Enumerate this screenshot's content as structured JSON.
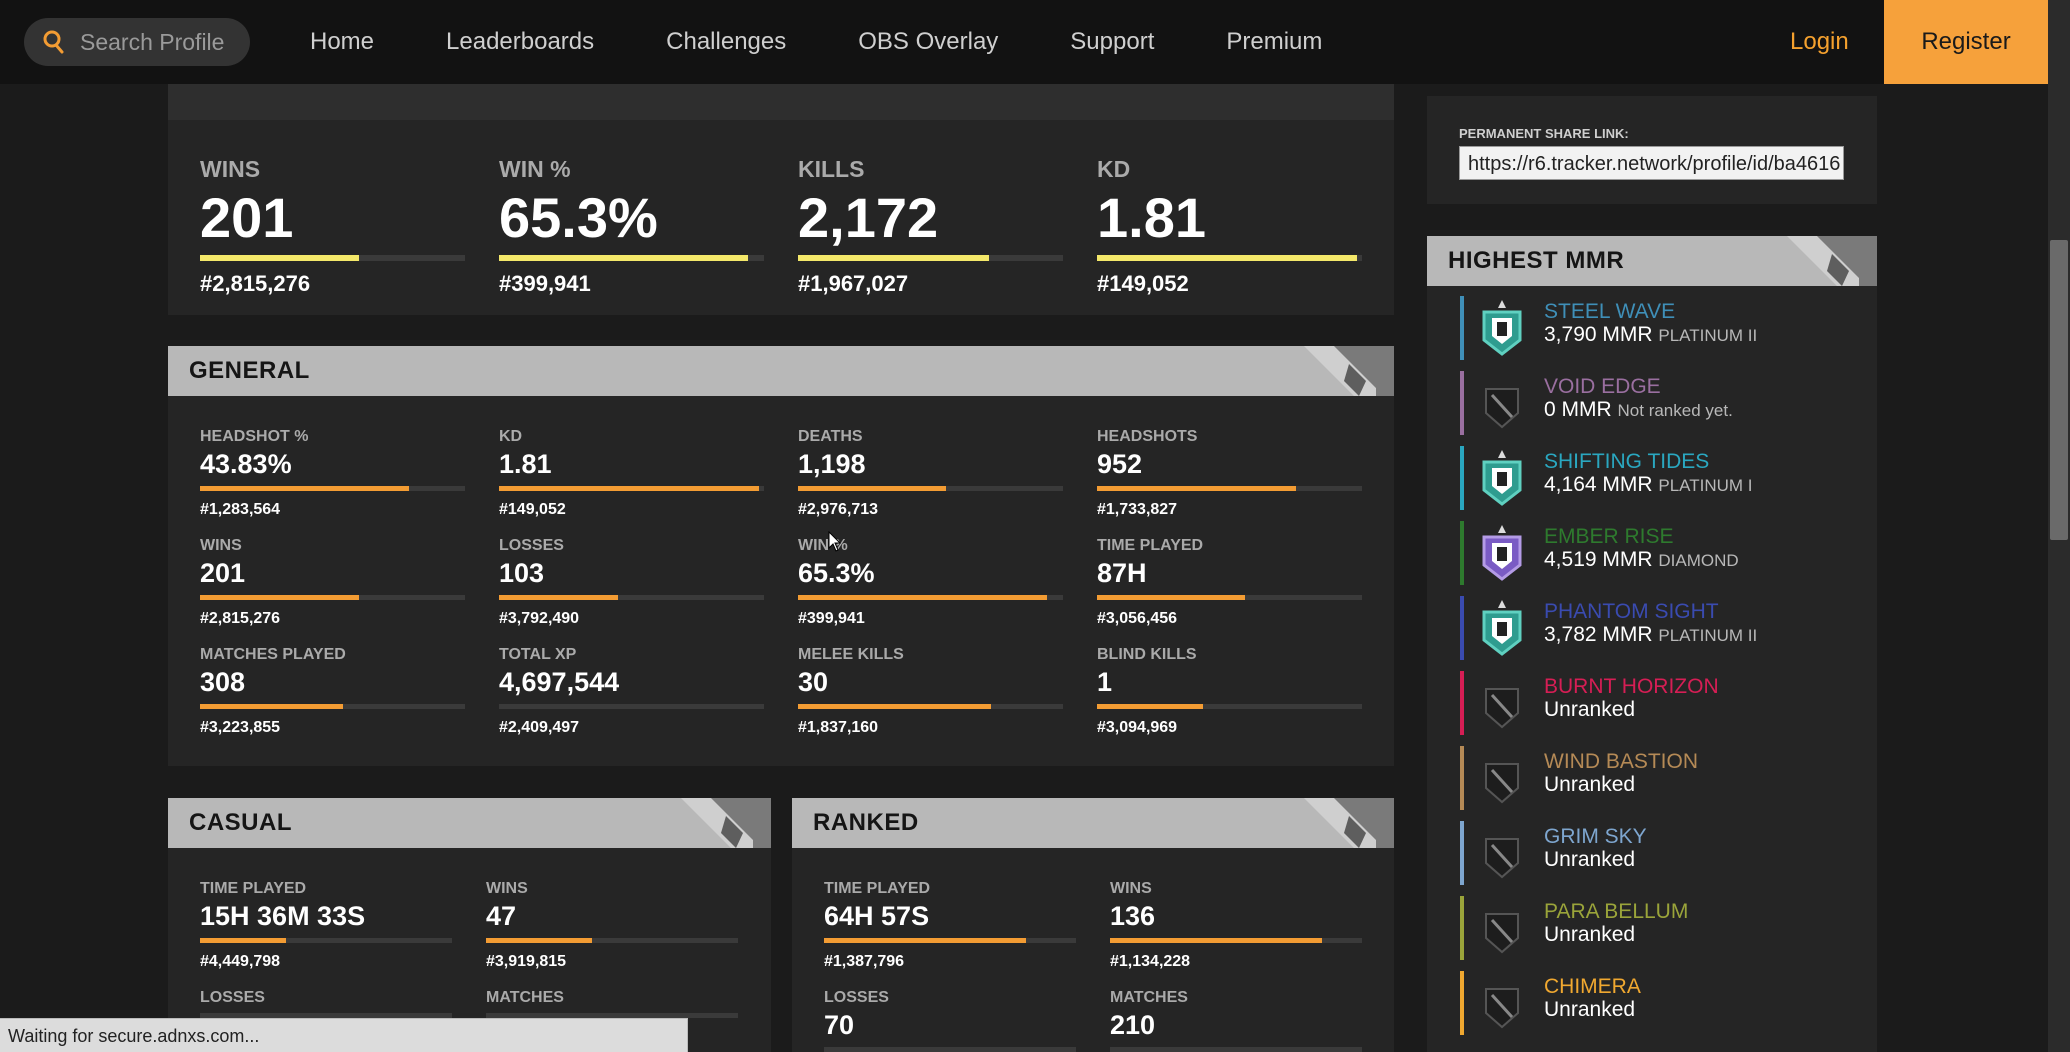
{
  "nav": {
    "search_placeholder": "Search Profile",
    "links": [
      "Home",
      "Leaderboards",
      "Challenges",
      "OBS Overlay",
      "Support",
      "Premium"
    ],
    "login": "Login",
    "register": "Register"
  },
  "overview": [
    {
      "label": "WINS",
      "value": "201",
      "rank": "#2,815,276",
      "progress": 0.6
    },
    {
      "label": "WIN %",
      "value": "65.3%",
      "rank": "#399,941",
      "progress": 0.94
    },
    {
      "label": "KILLS",
      "value": "2,172",
      "rank": "#1,967,027",
      "progress": 0.72
    },
    {
      "label": "KD",
      "value": "1.81",
      "rank": "#149,052",
      "progress": 0.98
    }
  ],
  "general": {
    "title": "GENERAL",
    "stats": [
      {
        "label": "HEADSHOT %",
        "value": "43.83%",
        "rank": "#1,283,564",
        "progress": 0.79
      },
      {
        "label": "KD",
        "value": "1.81",
        "rank": "#149,052",
        "progress": 0.98
      },
      {
        "label": "DEATHS",
        "value": "1,198",
        "rank": "#2,976,713",
        "progress": 0.56
      },
      {
        "label": "HEADSHOTS",
        "value": "952",
        "rank": "#1,733,827",
        "progress": 0.75
      },
      {
        "label": "WINS",
        "value": "201",
        "rank": "#2,815,276",
        "progress": 0.6
      },
      {
        "label": "LOSSES",
        "value": "103",
        "rank": "#3,792,490",
        "progress": 0.45
      },
      {
        "label": "WIN %",
        "value": "65.3%",
        "rank": "#399,941",
        "progress": 0.94
      },
      {
        "label": "TIME PLAYED",
        "value": "87H",
        "rank": "#3,056,456",
        "progress": 0.56
      },
      {
        "label": "MATCHES PLAYED",
        "value": "308",
        "rank": "#3,223,855",
        "progress": 0.54
      },
      {
        "label": "TOTAL XP",
        "value": "4,697,544",
        "rank": "#2,409,497",
        "progress": 0.0
      },
      {
        "label": "MELEE KILLS",
        "value": "30",
        "rank": "#1,837,160",
        "progress": 0.73
      },
      {
        "label": "BLIND KILLS",
        "value": "1",
        "rank": "#3,094,969",
        "progress": 0.4
      }
    ]
  },
  "casual": {
    "title": "CASUAL",
    "stats": [
      {
        "label": "TIME PLAYED",
        "value": "15H 36M 33S",
        "rank": "#4,449,798",
        "progress": 0.34
      },
      {
        "label": "WINS",
        "value": "47",
        "rank": "#3,919,815",
        "progress": 0.42
      },
      {
        "label": "LOSSES",
        "value": "",
        "rank": "",
        "progress": 0.0
      },
      {
        "label": "MATCHES",
        "value": "",
        "rank": "",
        "progress": 0.0
      }
    ]
  },
  "ranked": {
    "title": "RANKED",
    "stats": [
      {
        "label": "TIME PLAYED",
        "value": "64H 57S",
        "rank": "#1,387,796",
        "progress": 0.8
      },
      {
        "label": "WINS",
        "value": "136",
        "rank": "#1,134,228",
        "progress": 0.84
      },
      {
        "label": "LOSSES",
        "value": "70",
        "rank": "",
        "progress": 0.0
      },
      {
        "label": "MATCHES",
        "value": "210",
        "rank": "",
        "progress": 0.0
      }
    ]
  },
  "share": {
    "label": "PERMANENT SHARE LINK:",
    "url": "https://r6.tracker.network/profile/id/ba4616"
  },
  "highest_mmr": {
    "title": "HIGHEST MMR",
    "seasons": [
      {
        "name": "STEEL WAVE",
        "color": "#3f8fb8",
        "mmr": "3,790 MMR",
        "tier": "PLATINUM II",
        "emblem": "platinum-emblem-icon"
      },
      {
        "name": "VOID EDGE",
        "color": "#9a6fa0",
        "mmr": "0 MMR",
        "tier": "Not ranked yet.",
        "emblem": "unranked-emblem-icon"
      },
      {
        "name": "SHIFTING TIDES",
        "color": "#2aa7c0",
        "mmr": "4,164 MMR",
        "tier": "PLATINUM I",
        "emblem": "platinum-emblem-icon"
      },
      {
        "name": "EMBER RISE",
        "color": "#2e7a2e",
        "mmr": "4,519 MMR",
        "tier": "DIAMOND",
        "emblem": "diamond-emblem-icon"
      },
      {
        "name": "PHANTOM SIGHT",
        "color": "#3a4bb0",
        "mmr": "3,782 MMR",
        "tier": "PLATINUM II",
        "emblem": "platinum-emblem-icon"
      },
      {
        "name": "BURNT HORIZON",
        "color": "#d61e55",
        "mmr": "Unranked",
        "tier": "",
        "emblem": "unranked-emblem-icon"
      },
      {
        "name": "WIND BASTION",
        "color": "#b58a56",
        "mmr": "Unranked",
        "tier": "",
        "emblem": "unranked-emblem-icon"
      },
      {
        "name": "GRIM SKY",
        "color": "#7ea6cf",
        "mmr": "Unranked",
        "tier": "",
        "emblem": "unranked-emblem-icon"
      },
      {
        "name": "PARA BELLUM",
        "color": "#9aa43a",
        "mmr": "Unranked",
        "tier": "",
        "emblem": "unranked-emblem-icon"
      },
      {
        "name": "CHIMERA",
        "color": "#f0a830",
        "mmr": "Unranked",
        "tier": "",
        "emblem": "unranked-emblem-icon"
      }
    ]
  },
  "status_bar": "Waiting for secure.adnxs.com...",
  "colors": {
    "accent": "#f6a13b",
    "bar_yellow": "#f4e86a",
    "bar_orange": "#f39c33"
  }
}
